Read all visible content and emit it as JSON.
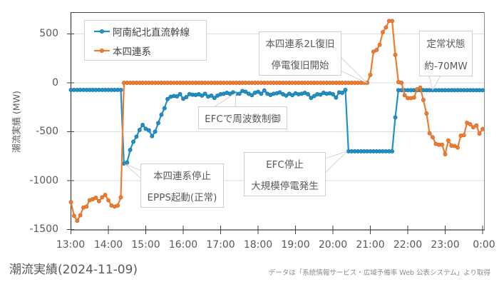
{
  "page": {
    "bottom_title": "潮流実績(2024-11-09)",
    "source_note": "データは「系統情報サービス・広域予備率 Web 公表システム」より取得"
  },
  "chart_data": {
    "type": "line",
    "title": "潮流実績(2024-11-09)",
    "xlabel": "",
    "ylabel": "潮流実績 (MW)",
    "x_start": "13:00",
    "x_step_minutes": 5,
    "x_ticks": [
      "13:00",
      "14:00",
      "15:00",
      "16:00",
      "17:00",
      "18:00",
      "19:00",
      "20:00",
      "21:00",
      "22:00",
      "23:00",
      "0:00"
    ],
    "y_ticks": [
      "500",
      "0",
      "-500",
      "-1000",
      "-1500"
    ],
    "ylim": [
      -1500,
      720
    ],
    "grid": true,
    "legend_position": "upper-left",
    "series": [
      {
        "name": "阿南紀北直流幹線",
        "color": "#1f91c9",
        "values": [
          -72,
          -72,
          -72,
          -72,
          -72,
          -72,
          -72,
          -72,
          -72,
          -72,
          -72,
          -72,
          -72,
          -72,
          -72,
          -72,
          -72,
          -825,
          -815,
          -686,
          -603,
          -550,
          -482,
          -431,
          -470,
          -486,
          -545,
          -499,
          -411,
          -326,
          -260,
          -166,
          -143,
          -134,
          -139,
          -115,
          -163,
          -146,
          -115,
          -122,
          -124,
          -117,
          -131,
          -112,
          -141,
          -131,
          -155,
          -131,
          -117,
          -112,
          -102,
          -112,
          -97,
          -112,
          -112,
          -83,
          -92,
          -112,
          -126,
          -102,
          -92,
          -112,
          -78,
          -112,
          -124,
          -112,
          -107,
          -97,
          -117,
          -131,
          -112,
          -126,
          -107,
          -117,
          -112,
          -102,
          -117,
          -155,
          -136,
          -117,
          -121,
          -102,
          -112,
          -107,
          -117,
          -151,
          -97,
          -102,
          -73,
          -700,
          -700,
          -700,
          -700,
          -700,
          -700,
          -700,
          -700,
          -700,
          -700,
          -700,
          -700,
          -700,
          -700,
          -700,
          -353,
          -75,
          -75,
          -75,
          -75,
          -75,
          -75,
          -75,
          -75,
          -75,
          -75,
          -75,
          -75,
          -75,
          -75,
          -75,
          -75,
          -75,
          -75,
          -75,
          -75,
          -75,
          -75,
          -75,
          -75,
          -75,
          -75,
          -75,
          -75
        ]
      },
      {
        "name": "本四連系",
        "color": "#ed7d31",
        "values": [
          -1220,
          -1360,
          -1410,
          -1355,
          -1275,
          -1265,
          -1200,
          -1190,
          -1175,
          -1210,
          -1170,
          -1145,
          -1200,
          -1255,
          -1265,
          -1255,
          -1170,
          0,
          0,
          0,
          0,
          0,
          0,
          0,
          0,
          0,
          0,
          0,
          0,
          0,
          0,
          0,
          0,
          0,
          0,
          0,
          0,
          0,
          0,
          0,
          0,
          0,
          0,
          0,
          0,
          0,
          0,
          0,
          0,
          0,
          0,
          0,
          0,
          0,
          0,
          0,
          0,
          0,
          0,
          0,
          0,
          0,
          0,
          0,
          0,
          0,
          0,
          0,
          0,
          0,
          0,
          0,
          0,
          0,
          0,
          0,
          0,
          0,
          0,
          0,
          0,
          0,
          0,
          0,
          0,
          0,
          0,
          0,
          0,
          0,
          0,
          0,
          0,
          0,
          0,
          0,
          80,
          319,
          336,
          389,
          518,
          567,
          633,
          633,
          287,
          7,
          0,
          -127,
          -156,
          -156,
          -151,
          -66,
          -49,
          -175,
          -314,
          -516,
          -557,
          -625,
          -633,
          -633,
          -730,
          -589,
          -642,
          -645,
          -662,
          -540,
          -535,
          -409,
          -423,
          -455,
          -436,
          -520,
          -472
        ]
      }
    ],
    "annotations": [
      {
        "line1": "本四連系停止",
        "line2": "EPPS起動(正常)"
      },
      {
        "line1": "EFCで周波数制御"
      },
      {
        "line1": "本四連系2L復旧",
        "line2": "停電復旧開始"
      },
      {
        "line1": "EFC停止",
        "line2": "大規模停電発生"
      },
      {
        "line1": "定常状態",
        "line2": "約-70MW"
      }
    ]
  }
}
